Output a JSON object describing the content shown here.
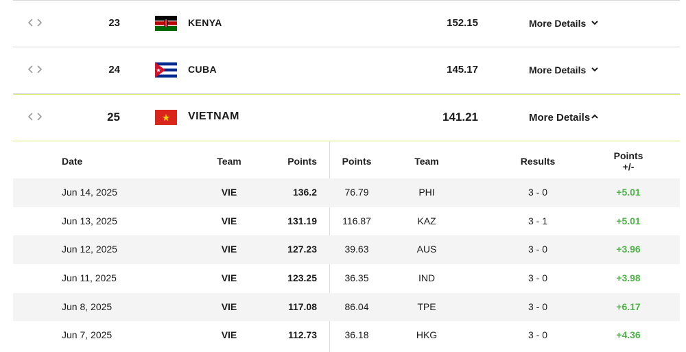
{
  "rankings": [
    {
      "rank": "23",
      "country": "KENYA",
      "points": "152.15",
      "more_label": "More Details",
      "expanded": false
    },
    {
      "rank": "24",
      "country": "CUBA",
      "points": "145.17",
      "more_label": "More Details",
      "expanded": false
    },
    {
      "rank": "25",
      "country": "VIETNAM",
      "points": "141.21",
      "more_label": "More Details",
      "expanded": true
    }
  ],
  "details": {
    "headers": {
      "date": "Date",
      "team": "Team",
      "points": "Points",
      "opp_points": "Points",
      "opp_team": "Team",
      "results": "Results",
      "diff_line1": "Points",
      "diff_line2": "+/-"
    },
    "matches": [
      {
        "date": "Jun 14, 2025",
        "team": "VIE",
        "points": "136.2",
        "opp_points": "76.79",
        "opp_team": "PHI",
        "result": "3 - 0",
        "diff": "+5.01"
      },
      {
        "date": "Jun 13, 2025",
        "team": "VIE",
        "points": "131.19",
        "opp_points": "116.87",
        "opp_team": "KAZ",
        "result": "3 - 1",
        "diff": "+5.01"
      },
      {
        "date": "Jun 12, 2025",
        "team": "VIE",
        "points": "127.23",
        "opp_points": "39.63",
        "opp_team": "AUS",
        "result": "3 - 0",
        "diff": "+3.96"
      },
      {
        "date": "Jun 11, 2025",
        "team": "VIE",
        "points": "123.25",
        "opp_points": "36.35",
        "opp_team": "IND",
        "result": "3 - 0",
        "diff": "+3.98"
      },
      {
        "date": "Jun 8, 2025",
        "team": "VIE",
        "points": "117.08",
        "opp_points": "86.04",
        "opp_team": "TPE",
        "result": "3 - 0",
        "diff": "+6.17"
      },
      {
        "date": "Jun 7, 2025",
        "team": "VIE",
        "points": "112.73",
        "opp_points": "36.18",
        "opp_team": "HKG",
        "result": "3 - 0",
        "diff": "+4.36"
      }
    ]
  },
  "colors": {
    "accent_border": "#d8ec6a",
    "positive": "#4fb34a",
    "row_shade": "#f4f4f4"
  },
  "icons": {
    "reorder": "reorder-arrows-icon",
    "expand": "chevron-down-icon",
    "collapse": "chevron-up-icon"
  }
}
